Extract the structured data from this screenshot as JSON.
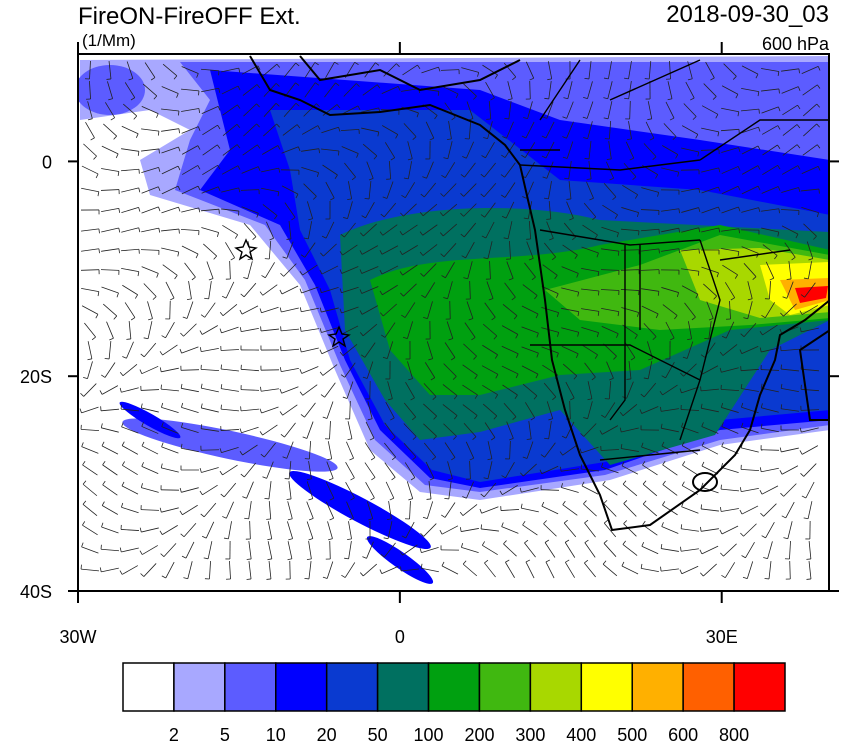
{
  "header": {
    "title": "FireON-FireOFF Ext.",
    "units": "(1/Mm)",
    "time": "2018-09-30_03",
    "level": "600 hPa"
  },
  "map": {
    "lon_range": [
      -30,
      40
    ],
    "lat_range": [
      -40,
      10
    ],
    "lat_ticks": [
      {
        "value": 0,
        "label": "0"
      },
      {
        "value": -20,
        "label": "20S"
      },
      {
        "value": -40,
        "label": "40S"
      }
    ],
    "lon_ticks": [
      {
        "value": -30,
        "label": "30W"
      },
      {
        "value": 0,
        "label": "0"
      },
      {
        "value": 30,
        "label": "30E"
      }
    ]
  },
  "colorbar": {
    "levels": [
      2,
      5,
      10,
      20,
      50,
      100,
      200,
      300,
      400,
      500,
      600,
      800
    ],
    "colors": [
      "#ffffff",
      "#a8a8ff",
      "#5c5cff",
      "#0000ff",
      "#0a3ad0",
      "#007060",
      "#00a010",
      "#40b810",
      "#a8d800",
      "#ffff00",
      "#ffb000",
      "#ff6000",
      "#ff0000"
    ]
  }
}
